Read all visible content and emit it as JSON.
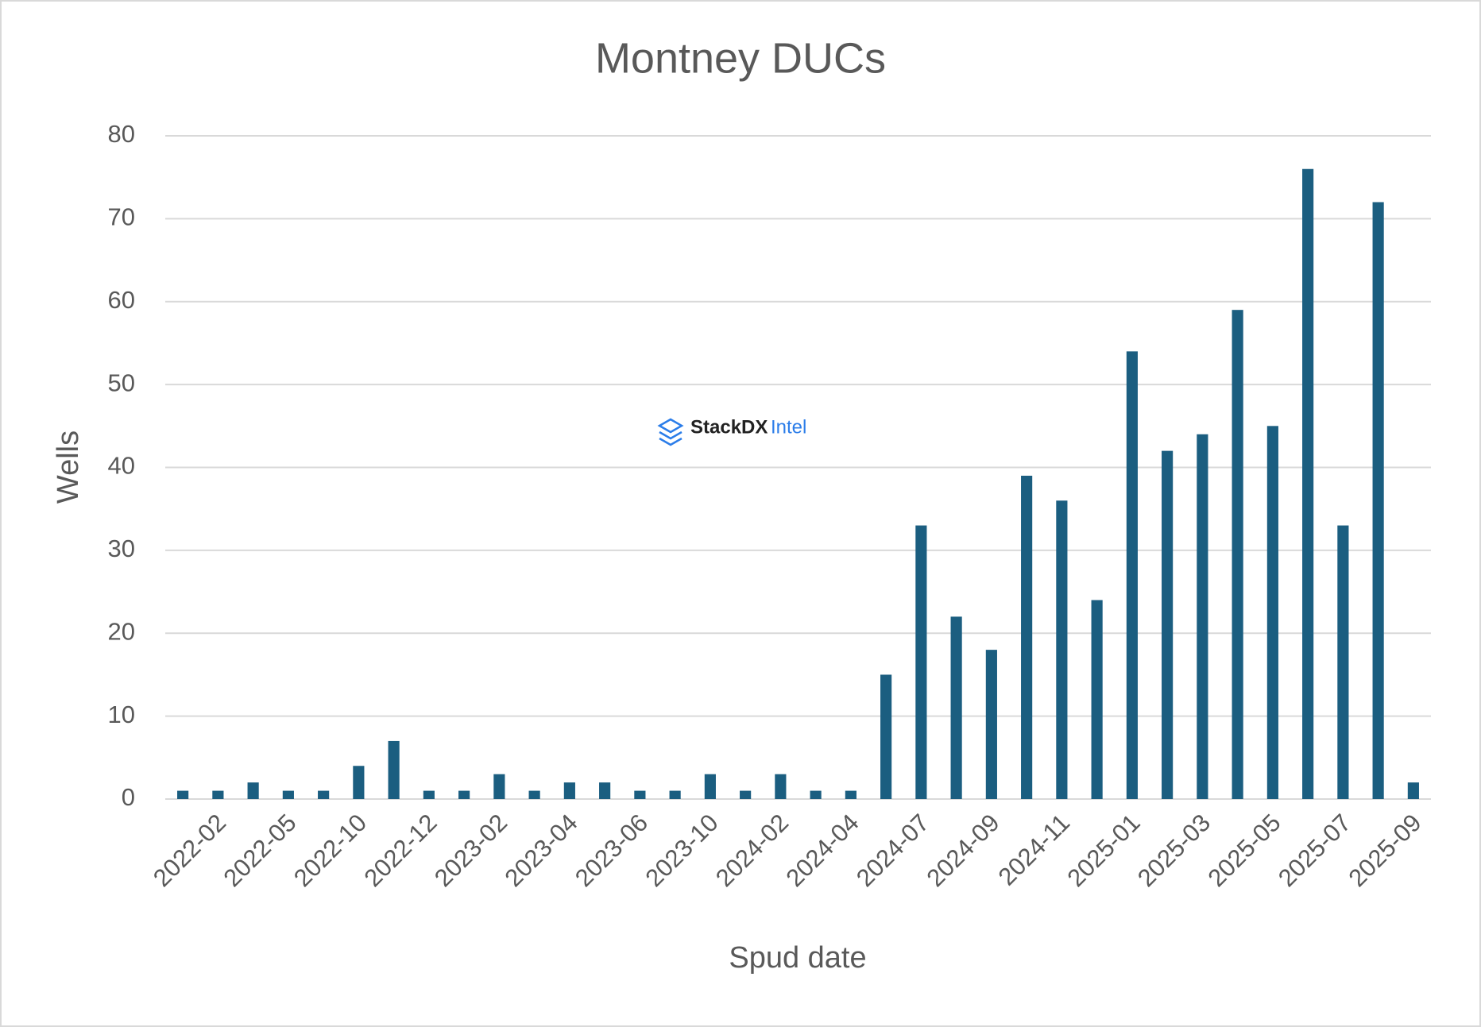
{
  "chart_data": {
    "type": "bar",
    "title": "Montney DUCs",
    "x_label": "Spud date",
    "y_label": "Wells",
    "watermark": {
      "brand": "StackDX",
      "product": "Intel"
    },
    "categories": [
      null,
      "2022-02",
      null,
      "2022-05",
      null,
      "2022-10",
      null,
      "2022-12",
      null,
      "2023-02",
      null,
      "2023-04",
      null,
      "2023-06",
      null,
      "2023-10",
      null,
      "2024-02",
      null,
      "2024-04",
      null,
      "2024-07",
      null,
      "2024-09",
      null,
      "2024-11",
      null,
      "2025-01",
      null,
      "2025-03",
      null,
      "2025-05",
      null,
      "2025-07",
      null,
      "2025-09"
    ],
    "values": [
      1,
      1,
      2,
      1,
      1,
      4,
      7,
      1,
      1,
      3,
      1,
      2,
      2,
      1,
      1,
      3,
      1,
      3,
      1,
      1,
      15,
      33,
      22,
      18,
      39,
      36,
      24,
      54,
      42,
      44,
      59,
      45,
      76,
      33,
      72,
      2
    ],
    "color": "#1b5e80",
    "ylim": [
      0,
      80
    ],
    "yticks": [
      0,
      10,
      20,
      30,
      40,
      50,
      60,
      70,
      80
    ],
    "grid": true
  }
}
